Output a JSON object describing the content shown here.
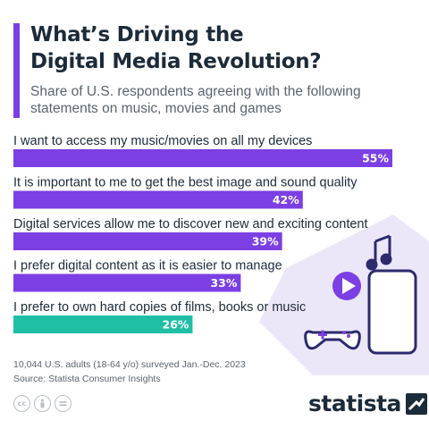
{
  "title_lines": [
    "What’s Driving the",
    "Digital Media Revolution?"
  ],
  "subtitle_lines": [
    "Share of U.S. respondents agreeing with the following",
    "statements on music, movies and games"
  ],
  "footnote_lines": [
    "10,044 U.S. adults (18-64 y/o) surveyed Jan.-Dec. 2023",
    "Source: Statista Consumer Insights"
  ],
  "brand": {
    "name": "statista",
    "license_icons": [
      "cc-icon",
      "attribution-icon",
      "no-derivatives-icon"
    ]
  },
  "colors": {
    "accent": "#7b3fe4",
    "bar_purple": "#7b3fe4",
    "bar_teal": "#1fbfa6",
    "illustration_bg": "#ece7f8"
  },
  "illustration_icons": [
    "music-note-icon",
    "play-button-icon",
    "game-controller-icon",
    "smartphone-icon"
  ],
  "chart_data": {
    "type": "bar",
    "orientation": "horizontal",
    "categories": [
      "I want to access my music/movies on all my devices",
      "It is important to me to get the best image and sound quality",
      "Digital services allow me to discover new and exciting content",
      "I prefer digital content as it is easier to manage",
      "I prefer to own hard copies of films, books or music"
    ],
    "values": [
      55,
      42,
      39,
      33,
      26
    ],
    "value_labels": [
      "55%",
      "42%",
      "39%",
      "33%",
      "26%"
    ],
    "bar_colors": [
      "#7b3fe4",
      "#7b3fe4",
      "#7b3fe4",
      "#7b3fe4",
      "#1fbfa6"
    ],
    "unit": "%",
    "xlim": [
      0,
      55
    ],
    "grid": false,
    "legend": "none"
  }
}
